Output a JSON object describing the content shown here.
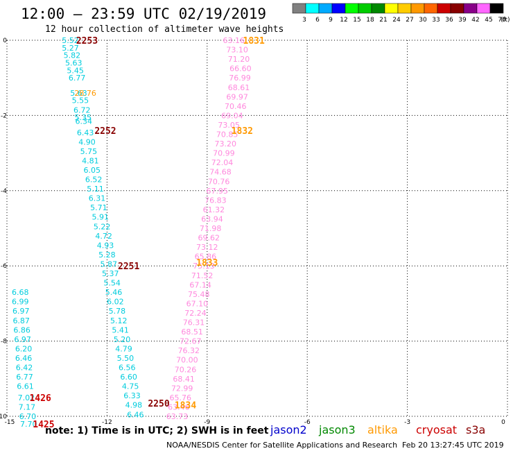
{
  "title": "12:00 – 23:59 UTC 02/19/2019",
  "subtitle": "12 hour collection of altimeter wave heights",
  "scale": {
    "labels": [
      "3",
      "6",
      "9",
      "12",
      "15",
      "18",
      "21",
      "24",
      "27",
      "30",
      "33",
      "36",
      "39",
      "42",
      "45",
      "70"
    ],
    "unit": "(ft)",
    "colors": [
      "#808080",
      "#00ffff",
      "#00aaff",
      "#0000ff",
      "#00ff00",
      "#00cc00",
      "#008800",
      "#ffff00",
      "#ffcc00",
      "#ff9900",
      "#ff6600",
      "#cc0000",
      "#880000",
      "#880088",
      "#ff66ff",
      "#000000"
    ]
  },
  "note": "note:  1) Time is in UTC; 2) SWH is in feet",
  "legend": [
    {
      "name": "jason2",
      "color": "#0000cc"
    },
    {
      "name": "jason3",
      "color": "#008800"
    },
    {
      "name": "altika",
      "color": "#ff9900"
    },
    {
      "name": "cryosat",
      "color": "#cc0000"
    },
    {
      "name": "s3a",
      "color": "#880000"
    }
  ],
  "footer_left": "NOAA/NESDIS Center for Satellite Applications and Research",
  "footer_right": "Feb 20 13:27:45 UTC 2019",
  "chart_data": {
    "type": "scatter",
    "title": "12:00 – 23:59 UTC 02/19/2019",
    "subtitle": "12 hour collection of altimeter wave heights",
    "xlim": [
      -15,
      0
    ],
    "ylim": [
      -10,
      0
    ],
    "x_ticks": [
      -15,
      -12,
      -9,
      -6,
      -3,
      0
    ],
    "x_tick_labels": [
      "-15",
      "-12",
      "-9",
      "-6",
      "-3",
      "0"
    ],
    "y_ticks": [
      0,
      -2,
      -4,
      -6,
      -8,
      -10
    ],
    "y_tick_labels": [
      "0",
      "-2",
      "-4",
      "-6",
      "-8",
      "-10"
    ],
    "grid": true,
    "colors": {
      "cyan": "#00ccdd",
      "orange": "#ff9900",
      "pink": "#ff88dd",
      "darkred": "#880000",
      "red": "#cc0000"
    },
    "series": [
      {
        "color_key": "cyan",
        "points": [
          [
            -13.1,
            0,
            "5.52"
          ],
          [
            -13.1,
            -0.2,
            "5.27"
          ],
          [
            -13.05,
            -0.4,
            "5.82"
          ],
          [
            -13.0,
            -0.6,
            "5.63"
          ],
          [
            -12.95,
            -0.8,
            "5.45"
          ],
          [
            -12.9,
            -1.0,
            "6.77"
          ],
          [
            -12.85,
            -1.4,
            "5.63"
          ],
          [
            -12.8,
            -1.6,
            "5.55"
          ],
          [
            -12.75,
            -1.85,
            "6.72"
          ],
          [
            -12.72,
            -2.05,
            "5.35"
          ],
          [
            -12.7,
            -2.15,
            "6.34"
          ],
          [
            -12.65,
            -2.45,
            "6.43"
          ],
          [
            -12.6,
            -2.7,
            "4.90"
          ],
          [
            -12.55,
            -2.95,
            "5.75"
          ],
          [
            -12.5,
            -3.2,
            "4.81"
          ],
          [
            -12.45,
            -3.45,
            "6.05"
          ],
          [
            -12.4,
            -3.7,
            "6.52"
          ],
          [
            -12.35,
            -3.95,
            "5.11"
          ],
          [
            -12.3,
            -4.2,
            "6.31"
          ],
          [
            -12.25,
            -4.45,
            "5.71"
          ],
          [
            -12.2,
            -4.7,
            "5.91"
          ],
          [
            -12.15,
            -4.95,
            "5.22"
          ],
          [
            -12.1,
            -5.2,
            "4.72"
          ],
          [
            -12.05,
            -5.45,
            "4.93"
          ],
          [
            -12.0,
            -5.7,
            "5.28"
          ],
          [
            -11.95,
            -5.95,
            "5.87"
          ],
          [
            -11.9,
            -6.2,
            "5.37"
          ],
          [
            -11.85,
            -6.45,
            "5.54"
          ],
          [
            -11.8,
            -6.7,
            "5.46"
          ],
          [
            -11.75,
            -6.95,
            "6.02"
          ],
          [
            -11.7,
            -7.2,
            "5.78"
          ],
          [
            -11.65,
            -7.45,
            "5.12"
          ],
          [
            -11.6,
            -7.7,
            "5.41"
          ],
          [
            -11.55,
            -7.95,
            "5.20"
          ],
          [
            -11.5,
            -8.2,
            "4.79"
          ],
          [
            -11.45,
            -8.45,
            "5.50"
          ],
          [
            -11.4,
            -8.7,
            "6.56"
          ],
          [
            -11.35,
            -8.95,
            "6.60"
          ],
          [
            -11.3,
            -9.2,
            "4.75"
          ],
          [
            -11.25,
            -9.45,
            "6.33"
          ],
          [
            -11.2,
            -9.7,
            "4.98"
          ],
          [
            -11.15,
            -9.95,
            "6.46"
          ],
          [
            -14.6,
            -6.7,
            "6.68"
          ],
          [
            -14.6,
            -6.95,
            "6.99"
          ],
          [
            -14.58,
            -7.2,
            "6.97"
          ],
          [
            -14.57,
            -7.45,
            "6.87"
          ],
          [
            -14.55,
            -7.7,
            "6.86"
          ],
          [
            -14.53,
            -7.95,
            "6.97"
          ],
          [
            -14.5,
            -8.2,
            "6.20"
          ],
          [
            -14.5,
            -8.45,
            "6.46"
          ],
          [
            -14.48,
            -8.7,
            "6.42"
          ],
          [
            -14.47,
            -8.95,
            "6.77"
          ],
          [
            -14.45,
            -9.2,
            "6.61"
          ],
          [
            -14.42,
            -9.5,
            "7.02"
          ],
          [
            -14.4,
            -9.75,
            "7.17"
          ],
          [
            -14.38,
            -10.0,
            "6.70"
          ],
          [
            -14.35,
            -10.2,
            "7.70"
          ]
        ]
      },
      {
        "color_key": "orange",
        "points": [
          [
            -12.65,
            -1.4,
            "28.76"
          ]
        ]
      },
      {
        "color_key": "pink",
        "points": [
          [
            -8.2,
            0,
            "63.16"
          ],
          [
            -8.1,
            -0.25,
            "73.10"
          ],
          [
            -8.05,
            -0.5,
            "71.20"
          ],
          [
            -8.0,
            -0.75,
            "66.60"
          ],
          [
            -8.02,
            -1.0,
            "76.99"
          ],
          [
            -8.05,
            -1.25,
            "68.61"
          ],
          [
            -8.1,
            -1.5,
            "69.97"
          ],
          [
            -8.15,
            -1.75,
            "70.46"
          ],
          [
            -8.25,
            -2.0,
            "69.04"
          ],
          [
            -8.35,
            -2.25,
            "73.05"
          ],
          [
            -8.4,
            -2.5,
            "70.85"
          ],
          [
            -8.45,
            -2.75,
            "73.20"
          ],
          [
            -8.5,
            -3.0,
            "70.99"
          ],
          [
            -8.55,
            -3.25,
            "72.04"
          ],
          [
            -8.6,
            -3.5,
            "74.68"
          ],
          [
            -8.65,
            -3.75,
            "70.76"
          ],
          [
            -8.7,
            -4.0,
            "67.95"
          ],
          [
            -8.75,
            -4.25,
            "76.83"
          ],
          [
            -8.8,
            -4.5,
            "61.32"
          ],
          [
            -8.85,
            -4.75,
            "63.94"
          ],
          [
            -8.9,
            -5.0,
            "71.98"
          ],
          [
            -8.95,
            -5.25,
            "69.62"
          ],
          [
            -9.0,
            -5.5,
            "73.12"
          ],
          [
            -9.05,
            -5.75,
            "65.86"
          ],
          [
            -9.1,
            -6.0,
            "75.13"
          ],
          [
            -9.15,
            -6.25,
            "71.52"
          ],
          [
            -9.2,
            -6.5,
            "67.14"
          ],
          [
            -9.25,
            -6.75,
            "75.48"
          ],
          [
            -9.3,
            -7.0,
            "67.10"
          ],
          [
            -9.35,
            -7.25,
            "72.24"
          ],
          [
            -9.4,
            -7.5,
            "76.31"
          ],
          [
            -9.45,
            -7.75,
            "68.51"
          ],
          [
            -9.5,
            -8.0,
            "72.67"
          ],
          [
            -9.55,
            -8.25,
            "76.32"
          ],
          [
            -9.6,
            -8.5,
            "70.00"
          ],
          [
            -9.65,
            -8.75,
            "70.26"
          ],
          [
            -9.7,
            -9.0,
            "68.41"
          ],
          [
            -9.75,
            -9.25,
            "72.99"
          ],
          [
            -9.8,
            -9.5,
            "65.76"
          ],
          [
            -9.85,
            -9.75,
            "63.46"
          ],
          [
            -9.9,
            -10.0,
            "63.73"
          ]
        ]
      }
    ],
    "pass_labels": [
      {
        "x": -12.6,
        "y": 0,
        "text": "2253",
        "color_key": "darkred"
      },
      {
        "x": -12.05,
        "y": -2.4,
        "text": "2252",
        "color_key": "darkred"
      },
      {
        "x": -11.35,
        "y": -6.0,
        "text": "2251",
        "color_key": "darkred"
      },
      {
        "x": -10.45,
        "y": -9.65,
        "text": "2250",
        "color_key": "darkred"
      },
      {
        "x": -7.6,
        "y": 0,
        "text": "1831",
        "color_key": "orange"
      },
      {
        "x": -7.95,
        "y": -2.4,
        "text": "1832",
        "color_key": "orange"
      },
      {
        "x": -9.0,
        "y": -5.9,
        "text": "1833",
        "color_key": "orange"
      },
      {
        "x": -9.65,
        "y": -9.7,
        "text": "1834",
        "color_key": "orange"
      },
      {
        "x": -14.0,
        "y": -9.5,
        "text": "1426",
        "color_key": "red"
      },
      {
        "x": -13.9,
        "y": -10.2,
        "text": "1425",
        "color_key": "red"
      }
    ]
  }
}
